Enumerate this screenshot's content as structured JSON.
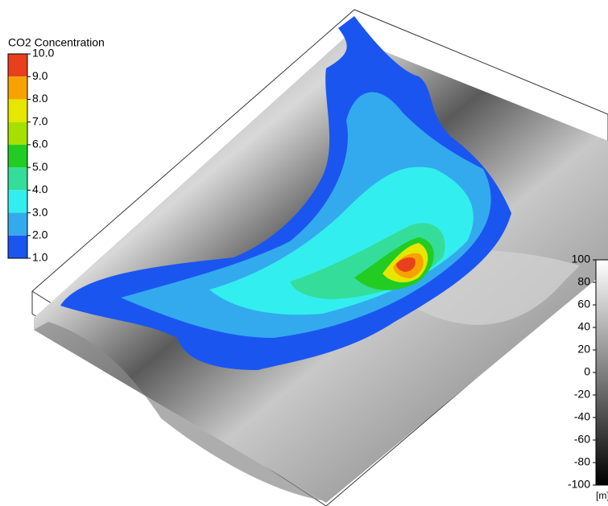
{
  "co2_legend": {
    "title": "CO2 Concentration",
    "labels": [
      "10.0",
      "9.0",
      "8.0",
      "7.0",
      "6.0",
      "5.0",
      "4.0",
      "3.0",
      "2.0",
      "1.0"
    ],
    "colors": [
      "#e8401c",
      "#f7a200",
      "#e6e600",
      "#a6e000",
      "#22cc22",
      "#34dd99",
      "#33eeee",
      "#33aaee",
      "#1b55f0"
    ]
  },
  "elevation_legend": {
    "labels": [
      "100",
      "80",
      "60",
      "40",
      "20",
      "0",
      "-20",
      "-40",
      "-60",
      "-80",
      "-100"
    ],
    "unit": "[m]"
  }
}
